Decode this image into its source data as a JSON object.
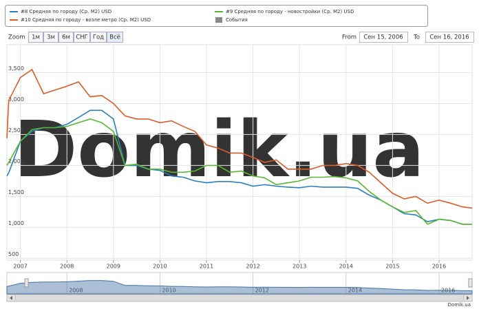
{
  "chart_data": {
    "type": "line",
    "x": [
      2006.71,
      2006.75,
      2007.0,
      2007.25,
      2007.5,
      2007.75,
      2008.0,
      2008.25,
      2008.5,
      2008.75,
      2009.0,
      2009.25,
      2009.5,
      2009.75,
      2010.0,
      2010.25,
      2010.5,
      2010.75,
      2011.0,
      2011.25,
      2011.5,
      2011.75,
      2012.0,
      2012.25,
      2012.5,
      2012.75,
      2013.0,
      2013.25,
      2013.5,
      2013.75,
      2014.0,
      2014.25,
      2014.5,
      2014.75,
      2015.0,
      2015.25,
      2015.5,
      2015.75,
      2016.0,
      2016.25,
      2016.5,
      2016.71
    ],
    "series": [
      {
        "name": "#8 Средняя по городу (Ср. M2) USD",
        "color": "#2a7fc0",
        "values": [
          1830,
          1880,
          2390,
          2550,
          2610,
          2610,
          2665,
          2775,
          2890,
          2890,
          2750,
          2000,
          2000,
          1940,
          1920,
          1830,
          1810,
          1750,
          1720,
          1740,
          1740,
          1720,
          1665,
          1690,
          1665,
          1650,
          1640,
          1665,
          1650,
          1650,
          1650,
          1630,
          1520,
          1440,
          1330,
          1220,
          1200,
          1090,
          1130,
          1110,
          1050,
          1050
        ]
      },
      {
        "name": "#9 Средняя по городу - новостройки (Ср. M2) USD",
        "color": "#56b82e",
        "values": [
          2000,
          2050,
          2390,
          2580,
          2610,
          2610,
          2630,
          2690,
          2750,
          2690,
          2550,
          2000,
          2020,
          1940,
          1940,
          1890,
          1890,
          1910,
          2000,
          2000,
          1890,
          1910,
          1830,
          1800,
          1690,
          1720,
          1750,
          1810,
          1810,
          1820,
          1800,
          1750,
          1580,
          1440,
          1330,
          1240,
          1270,
          1050,
          1130,
          1110,
          1050,
          1050
        ]
      },
      {
        "name": "#10 Средняя по городу - возле метро (Ср. M2) USD",
        "color": "#e05a28",
        "values": [
          2440,
          3050,
          3420,
          3550,
          3160,
          3220,
          3280,
          3350,
          3110,
          3130,
          3000,
          2800,
          2750,
          2750,
          2690,
          2720,
          2630,
          2550,
          2330,
          2280,
          2200,
          2200,
          2130,
          2050,
          2090,
          1940,
          1940,
          1940,
          2000,
          2000,
          2030,
          2000,
          1890,
          1720,
          1550,
          1460,
          1500,
          1390,
          1440,
          1390,
          1330,
          1310
        ]
      }
    ],
    "events": {
      "name": "События",
      "color": "#888888"
    },
    "xlim": [
      2006.71,
      2016.71
    ],
    "xticks": [
      2007,
      2008,
      2009,
      2010,
      2011,
      2012,
      2013,
      2014,
      2015,
      2016
    ],
    "ylim": [
      470,
      3950
    ],
    "yticks": [
      500,
      {
        "value": 1000,
        "label": "1,000"
      },
      {
        "value": 1500,
        "label": "1,500"
      },
      {
        "value": 2000,
        "label": "2,000"
      },
      {
        "value": 2500,
        "label": "2,500"
      },
      {
        "value": 3000,
        "label": "3,000"
      },
      {
        "value": 3500,
        "label": "3,500"
      }
    ],
    "grid": true,
    "watermark": "Domik.ua",
    "navigator": {
      "xticks": [
        2008,
        2010,
        2012,
        2014,
        2016
      ]
    },
    "credit": "Domik.ua"
  },
  "range_selector": {
    "label": "Zoom",
    "buttons": [
      "1м",
      "3м",
      "6м",
      "СНГ",
      "Год",
      "Всё"
    ]
  },
  "date_range": {
    "from_label": "From",
    "from": "Сен 15, 2006",
    "to_label": "To",
    "to": "Сен 16, 2016"
  }
}
